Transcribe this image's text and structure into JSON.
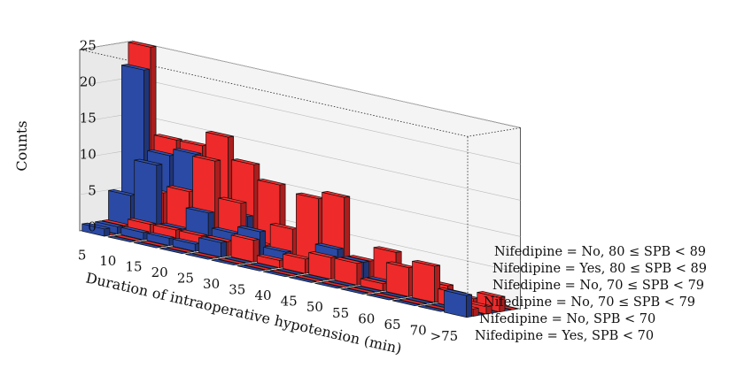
{
  "chart_data": {
    "type": "bar",
    "subtype": "3d-bar",
    "title": "",
    "xlabel": "Duration of intraoperative hypotension (min)",
    "zlabel": "Counts",
    "zlim": [
      0,
      25
    ],
    "z_ticks": [
      "0",
      "5",
      "10",
      "15",
      "20",
      "25"
    ],
    "categories": [
      "5",
      "10",
      "15",
      "20",
      "25",
      "30",
      "35",
      "40",
      "45",
      "50",
      "55",
      "60",
      "65",
      "70",
      ">75"
    ],
    "colors": {
      "yes": "#2b4aa6",
      "no": "#ee2a2a"
    },
    "series": [
      {
        "name": "Nifedipine = Yes, SPB < 70",
        "color": "#2b4aa6",
        "values": [
          1,
          0,
          0,
          0,
          0,
          0,
          0,
          0,
          0,
          0,
          0,
          0,
          0,
          0,
          3
        ]
      },
      {
        "name": "Nifedipine = No, SPB < 70",
        "color": "#ee2a2a",
        "values": [
          0,
          0,
          0,
          0,
          0,
          0,
          0,
          0,
          0,
          0,
          0,
          0,
          0,
          0,
          1
        ]
      },
      {
        "name": "Nifedipine = No, 70 ≤ SPB < 79",
        "color": "#2b4aa6",
        "values": [
          1,
          1,
          1,
          1,
          2,
          0,
          0,
          0,
          0,
          0,
          0,
          0,
          0,
          0,
          0
        ]
      },
      {
        "name": "Nifedipine = No, 70 ≤ SPB < 79",
        "color": "#ee2a2a",
        "values": [
          1,
          2,
          2,
          2,
          2,
          3,
          1,
          2,
          3,
          3,
          1,
          4,
          5,
          2,
          1
        ]
      },
      {
        "name": "Nifedipine = Yes, 80 ≤ SPB < 89",
        "color": "#2b4aa6",
        "values": [
          5,
          10,
          2,
          5,
          3,
          4,
          2,
          1,
          4,
          3,
          1,
          1,
          0,
          0,
          0
        ]
      },
      {
        "name": "Nifedipine = No, 80 ≤ SPB < 89",
        "color": "#ee2a2a",
        "values": [
          3,
          6,
          7,
          12,
          7,
          2,
          5,
          10,
          11,
          3,
          5,
          2,
          2,
          1,
          2
        ]
      },
      {
        "name": "Nifedipine = Yes, SPB < 70",
        "color": "#2b4aa6",
        "values": [
          22,
          11,
          12,
          5,
          5,
          0,
          0,
          0,
          0,
          0,
          0,
          0,
          0,
          0,
          0
        ]
      },
      {
        "name": "Nifedipine = No, 80 ≤ SPB < 89",
        "color": "#ee2a2a",
        "values": [
          25,
          13,
          13,
          15,
          12,
          10,
          0,
          0,
          0,
          0,
          0,
          0,
          0,
          0,
          0
        ]
      }
    ],
    "legend_entries": [
      "Nifedipine = No, 80 ≤ SPB < 89",
      "Nifedipine = Yes, 80 ≤ SPB < 89",
      "Nifedipine = No, 70 ≤ SPB < 79",
      "Nifedipine = No, 70 ≤ SPB < 79",
      "Nifedipine = No, SPB < 70",
      "Nifedipine = Yes, SPB < 70"
    ]
  }
}
